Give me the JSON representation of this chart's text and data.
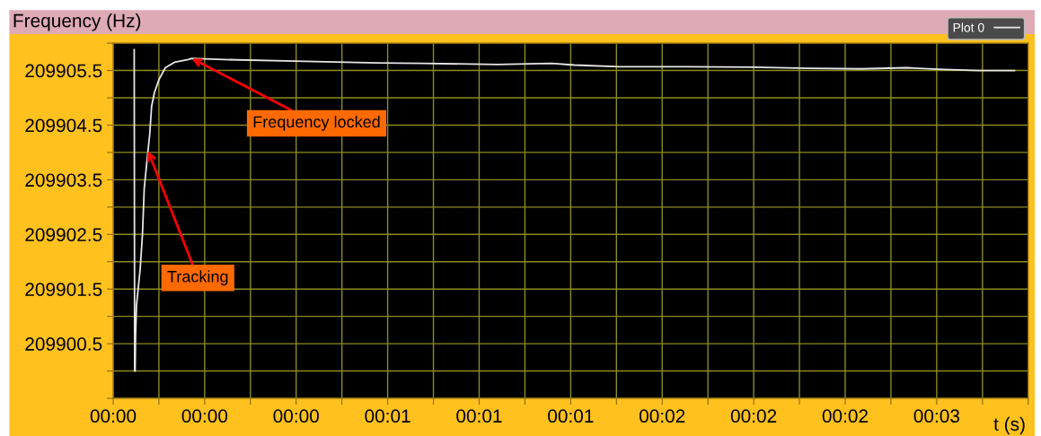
{
  "chart_data": {
    "type": "line",
    "ylabel": "Frequency (Hz)",
    "xlabel": "t (s)",
    "series": [
      {
        "name": "Plot 0",
        "color": "#e6e6e6",
        "x": [
          -0.081,
          -0.0795,
          -0.078,
          -0.0765,
          -0.0735,
          -0.0675,
          -0.0615,
          -0.054,
          -0.048,
          -0.039,
          -0.03,
          -0.024,
          -0.015,
          0.0,
          0.021,
          0.051,
          0.096,
          0.108,
          0.213,
          0.447,
          0.714,
          0.861,
          1.11,
          1.287,
          1.362,
          1.509,
          1.656,
          1.95,
          2.127,
          2.304,
          2.451,
          2.571,
          2.688,
          2.805
        ],
        "values": [
          209905.88,
          209900.0,
          209900.0,
          209900.62,
          209901.2,
          209901.53,
          209901.86,
          209902.49,
          209903.35,
          209903.85,
          209904.34,
          209904.84,
          209905.09,
          209905.33,
          209905.55,
          209905.65,
          209905.7,
          209905.72,
          209905.7,
          209905.67,
          209905.64,
          209905.63,
          209905.61,
          209905.63,
          209905.6,
          209905.57,
          209905.57,
          209905.56,
          209905.54,
          209905.53,
          209905.55,
          209905.52,
          209905.5,
          209905.5
        ]
      }
    ],
    "xlim": [
      -0.15,
      2.85
    ],
    "xticks": [
      {
        "value": -0.15,
        "label": "00:00"
      },
      {
        "value": 0,
        "label": null
      },
      {
        "value": 0.15,
        "label": "00:00"
      },
      {
        "value": 0.3,
        "label": null
      },
      {
        "value": 0.45,
        "label": "00:00"
      },
      {
        "value": 0.6,
        "label": null
      },
      {
        "value": 0.75,
        "label": "00:01"
      },
      {
        "value": 0.9,
        "label": null
      },
      {
        "value": 1.05,
        "label": "00:01"
      },
      {
        "value": 1.2,
        "label": null
      },
      {
        "value": 1.35,
        "label": "00:01"
      },
      {
        "value": 1.5,
        "label": null
      },
      {
        "value": 1.65,
        "label": "00:02"
      },
      {
        "value": 1.8,
        "label": null
      },
      {
        "value": 1.95,
        "label": "00:02"
      },
      {
        "value": 2.1,
        "label": null
      },
      {
        "value": 2.25,
        "label": "00:02"
      },
      {
        "value": 2.4,
        "label": null
      },
      {
        "value": 2.55,
        "label": "00:03"
      },
      {
        "value": 2.7,
        "label": null
      },
      {
        "value": 2.85,
        "label": null
      }
    ],
    "ylim": [
      209899.5,
      209906.0
    ],
    "yticks": [
      {
        "value": 209899.5,
        "label": null
      },
      {
        "value": 209900.0,
        "label": null
      },
      {
        "value": 209900.5,
        "label": "209900.5"
      },
      {
        "value": 209901.0,
        "label": null
      },
      {
        "value": 209901.5,
        "label": "209901.5"
      },
      {
        "value": 209902.0,
        "label": null
      },
      {
        "value": 209902.5,
        "label": "209902.5"
      },
      {
        "value": 209903.0,
        "label": null
      },
      {
        "value": 209903.5,
        "label": "209903.5"
      },
      {
        "value": 209904.0,
        "label": null
      },
      {
        "value": 209904.5,
        "label": "209904.5"
      },
      {
        "value": 209905.0,
        "label": null
      },
      {
        "value": 209905.5,
        "label": "209905.5"
      },
      {
        "value": 209906.0,
        "label": null
      }
    ],
    "annotations": [
      {
        "text": "Frequency locked",
        "x": 0.108,
        "y": 209905.72
      },
      {
        "text": "Tracking",
        "x": -0.036,
        "y": 209904.03
      }
    ],
    "grid": true,
    "legend": "top right",
    "marker": "none",
    "line_style": "solid"
  }
}
